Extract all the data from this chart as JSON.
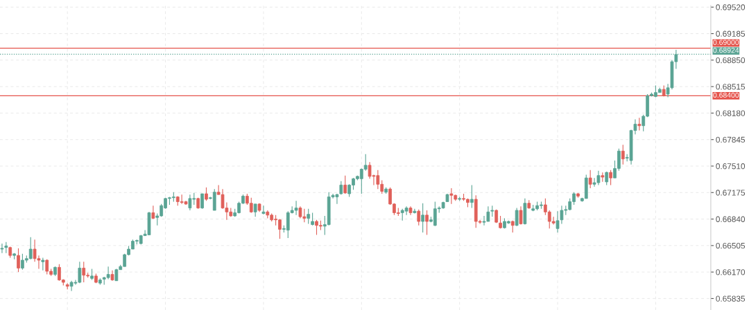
{
  "chart_data": {
    "type": "candlestick",
    "categories": [
      null,
      null,
      null,
      null,
      null,
      null,
      null,
      null,
      null,
      null,
      null,
      null,
      null,
      null,
      null,
      null,
      null,
      null,
      null,
      null,
      null,
      null,
      null,
      null,
      null,
      null,
      null,
      null,
      null,
      null,
      null,
      null,
      null,
      null,
      null,
      null,
      null,
      null,
      null,
      null,
      null,
      null,
      null,
      null,
      null,
      null,
      null,
      null,
      null,
      null,
      null,
      null,
      null,
      null,
      null,
      null,
      null,
      null,
      null,
      null,
      null,
      null,
      null,
      null,
      null,
      null,
      null,
      null,
      null,
      null,
      null,
      null,
      null,
      null,
      null,
      null,
      null,
      null,
      null,
      null,
      null,
      null,
      null,
      null,
      null,
      null,
      null,
      null,
      null,
      null,
      null,
      null,
      null,
      null,
      null,
      null,
      null,
      null,
      null,
      null,
      null,
      null,
      null,
      null,
      null,
      null,
      null,
      null,
      null,
      null,
      null,
      null,
      null,
      null,
      null,
      null,
      null,
      null,
      null,
      null,
      null,
      null,
      null,
      null,
      null,
      null,
      null,
      null,
      null,
      null,
      null,
      null,
      null,
      null,
      null,
      null,
      null,
      null,
      null,
      null,
      null,
      null,
      null,
      null,
      null,
      null,
      null,
      null,
      null,
      null,
      null,
      null,
      null,
      null,
      null,
      null,
      null,
      null,
      null,
      null,
      null,
      null,
      null,
      null,
      null,
      null
    ],
    "ohlc": [
      [
        0.6646,
        0.6653,
        0.6641,
        0.6647
      ],
      [
        0.6648,
        0.6655,
        0.6641,
        0.665
      ],
      [
        0.6648,
        0.6649,
        0.6635,
        0.6638
      ],
      [
        0.6638,
        0.6641,
        0.6633,
        0.664
      ],
      [
        0.6638,
        0.6647,
        0.6617,
        0.6622
      ],
      [
        0.6622,
        0.664,
        0.662,
        0.6632
      ],
      [
        0.6632,
        0.6638,
        0.6629,
        0.6634
      ],
      [
        0.6634,
        0.6661,
        0.6633,
        0.6646
      ],
      [
        0.6646,
        0.6658,
        0.663,
        0.6634
      ],
      [
        0.6634,
        0.6638,
        0.6621,
        0.6632
      ],
      [
        0.663,
        0.6635,
        0.6619,
        0.6632
      ],
      [
        0.6632,
        0.6633,
        0.6614,
        0.6618
      ],
      [
        0.6618,
        0.6621,
        0.6612,
        0.6614
      ],
      [
        0.6614,
        0.6624,
        0.6612,
        0.6623
      ],
      [
        0.6623,
        0.6627,
        0.6606,
        0.6607
      ],
      [
        0.6607,
        0.6608,
        0.66,
        0.6604
      ],
      [
        0.6601,
        0.6603,
        0.6595,
        0.6599
      ],
      [
        0.6599,
        0.6606,
        0.6593,
        0.6604
      ],
      [
        0.6603,
        0.6607,
        0.6601,
        0.6604
      ],
      [
        0.6604,
        0.663,
        0.6603,
        0.6622
      ],
      [
        0.6622,
        0.663,
        0.6604,
        0.6613
      ],
      [
        0.6613,
        0.6616,
        0.661,
        0.6612
      ],
      [
        0.6609,
        0.6621,
        0.6607,
        0.6612
      ],
      [
        0.6612,
        0.6615,
        0.6603,
        0.6604
      ],
      [
        0.6603,
        0.6609,
        0.6601,
        0.6607
      ],
      [
        0.6608,
        0.6611,
        0.6601,
        0.661
      ],
      [
        0.661,
        0.6624,
        0.6608,
        0.6614
      ],
      [
        0.6614,
        0.6619,
        0.6606,
        0.6607
      ],
      [
        0.6606,
        0.6621,
        0.6606,
        0.662
      ],
      [
        0.662,
        0.6626,
        0.662,
        0.6624
      ],
      [
        0.6624,
        0.664,
        0.6624,
        0.6639
      ],
      [
        0.6639,
        0.665,
        0.6638,
        0.6646
      ],
      [
        0.6646,
        0.6658,
        0.6646,
        0.6656
      ],
      [
        0.6656,
        0.6658,
        0.6652,
        0.6657
      ],
      [
        0.6653,
        0.6664,
        0.6652,
        0.6663
      ],
      [
        0.6663,
        0.667,
        0.6663,
        0.6665
      ],
      [
        0.6664,
        0.6693,
        0.6664,
        0.6692
      ],
      [
        0.6692,
        0.6701,
        0.6684,
        0.6685
      ],
      [
        0.6686,
        0.6691,
        0.6676,
        0.6688
      ],
      [
        0.6688,
        0.6703,
        0.6687,
        0.6701
      ],
      [
        0.6698,
        0.6711,
        0.6697,
        0.671
      ],
      [
        0.671,
        0.6712,
        0.6702,
        0.6711
      ],
      [
        0.6711,
        0.6718,
        0.6706,
        0.6712
      ],
      [
        0.6712,
        0.6713,
        0.6701,
        0.6706
      ],
      [
        0.6706,
        0.6715,
        0.6703,
        0.6705
      ],
      [
        0.6706,
        0.6707,
        0.6702,
        0.6703
      ],
      [
        0.6698,
        0.6715,
        0.6695,
        0.671
      ],
      [
        0.6709,
        0.6717,
        0.6702,
        0.671
      ],
      [
        0.671,
        0.6711,
        0.6697,
        0.6698
      ],
      [
        0.6698,
        0.6716,
        0.6697,
        0.6716
      ],
      [
        0.6716,
        0.6724,
        0.6707,
        0.6709
      ],
      [
        0.671,
        0.6712,
        0.6709,
        0.6711
      ],
      [
        0.6695,
        0.6722,
        0.6695,
        0.6718
      ],
      [
        0.6718,
        0.6727,
        0.6715,
        0.6715
      ],
      [
        0.6715,
        0.6722,
        0.6697,
        0.6698
      ],
      [
        0.6698,
        0.6705,
        0.6683,
        0.6693
      ],
      [
        0.6693,
        0.6698,
        0.6687,
        0.6688
      ],
      [
        0.6688,
        0.6697,
        0.6687,
        0.6692
      ],
      [
        0.6692,
        0.6706,
        0.6691,
        0.6704
      ],
      [
        0.6704,
        0.6715,
        0.6703,
        0.6713
      ],
      [
        0.6713,
        0.6716,
        0.6702,
        0.6704
      ],
      [
        0.6704,
        0.6711,
        0.6692,
        0.6693
      ],
      [
        0.6693,
        0.6703,
        0.6687,
        0.6703
      ],
      [
        0.6703,
        0.6704,
        0.6693,
        0.6695
      ],
      [
        0.6691,
        0.6701,
        0.669,
        0.6693
      ],
      [
        0.6693,
        0.6695,
        0.6685,
        0.6689
      ],
      [
        0.6689,
        0.6691,
        0.6681,
        0.6683
      ],
      [
        0.6684,
        0.6689,
        0.6676,
        0.6683
      ],
      [
        0.6683,
        0.6684,
        0.6659,
        0.6671
      ],
      [
        0.6671,
        0.6676,
        0.6667,
        0.6672
      ],
      [
        0.667,
        0.6694,
        0.666,
        0.6692
      ],
      [
        0.6692,
        0.67,
        0.6691,
        0.6695
      ],
      [
        0.6695,
        0.6707,
        0.6689,
        0.6698
      ],
      [
        0.6698,
        0.67,
        0.6685,
        0.6687
      ],
      [
        0.6687,
        0.6697,
        0.668,
        0.6685
      ],
      [
        0.6685,
        0.6697,
        0.6678,
        0.669
      ],
      [
        0.6677,
        0.6692,
        0.6676,
        0.6681
      ],
      [
        0.6681,
        0.6683,
        0.6664,
        0.6676
      ],
      [
        0.6676,
        0.6682,
        0.667,
        0.6675
      ],
      [
        0.6675,
        0.6688,
        0.6664,
        0.6677
      ],
      [
        0.6677,
        0.6718,
        0.6676,
        0.6712
      ],
      [
        0.6712,
        0.6716,
        0.671,
        0.6714
      ],
      [
        0.6712,
        0.6716,
        0.6703,
        0.6715
      ],
      [
        0.6716,
        0.6732,
        0.6715,
        0.6727
      ],
      [
        0.6727,
        0.6739,
        0.6716,
        0.6717
      ],
      [
        0.6716,
        0.6728,
        0.6712,
        0.6727
      ],
      [
        0.6727,
        0.6736,
        0.6721,
        0.6735
      ],
      [
        0.6735,
        0.6739,
        0.6733,
        0.6738
      ],
      [
        0.6735,
        0.6748,
        0.6716,
        0.6747
      ],
      [
        0.6747,
        0.6766,
        0.6745,
        0.6752
      ],
      [
        0.6752,
        0.6756,
        0.6735,
        0.6738
      ],
      [
        0.6739,
        0.674,
        0.6727,
        0.6738
      ],
      [
        0.6739,
        0.6746,
        0.6722,
        0.6728
      ],
      [
        0.6728,
        0.6733,
        0.6716,
        0.6719
      ],
      [
        0.6718,
        0.6724,
        0.6716,
        0.6722
      ],
      [
        0.6722,
        0.6724,
        0.6702,
        0.6703
      ],
      [
        0.6703,
        0.6704,
        0.6689,
        0.6692
      ],
      [
        0.6692,
        0.6698,
        0.6688,
        0.6691
      ],
      [
        0.6692,
        0.6697,
        0.6682,
        0.6695
      ],
      [
        0.6694,
        0.67,
        0.6689,
        0.6698
      ],
      [
        0.6698,
        0.67,
        0.6689,
        0.6692
      ],
      [
        0.6692,
        0.6697,
        0.6691,
        0.6694
      ],
      [
        0.6694,
        0.6696,
        0.6676,
        0.6681
      ],
      [
        0.6681,
        0.6704,
        0.6667,
        0.6689
      ],
      [
        0.6689,
        0.6695,
        0.6664,
        0.6681
      ],
      [
        0.6681,
        0.6687,
        0.668,
        0.6683
      ],
      [
        0.6676,
        0.6706,
        0.6675,
        0.6697
      ],
      [
        0.6697,
        0.67,
        0.6692,
        0.6698
      ],
      [
        0.6698,
        0.6706,
        0.6697,
        0.6705
      ],
      [
        0.6706,
        0.6716,
        0.6706,
        0.6715
      ],
      [
        0.6716,
        0.6723,
        0.6703,
        0.6714
      ],
      [
        0.6714,
        0.6715,
        0.6707,
        0.6709
      ],
      [
        0.6709,
        0.6712,
        0.6707,
        0.671
      ],
      [
        0.671,
        0.6716,
        0.6707,
        0.6709
      ],
      [
        0.6709,
        0.671,
        0.6699,
        0.6705
      ],
      [
        0.6705,
        0.6727,
        0.6698,
        0.6709
      ],
      [
        0.6709,
        0.6714,
        0.6673,
        0.6681
      ],
      [
        0.6681,
        0.6683,
        0.6678,
        0.668
      ],
      [
        0.668,
        0.6688,
        0.6676,
        0.6681
      ],
      [
        0.6681,
        0.67,
        0.6681,
        0.6693
      ],
      [
        0.6694,
        0.6701,
        0.6687,
        0.6695
      ],
      [
        0.6695,
        0.6696,
        0.6679,
        0.668
      ],
      [
        0.6679,
        0.6688,
        0.6672,
        0.6673
      ],
      [
        0.6673,
        0.6685,
        0.6672,
        0.6681
      ],
      [
        0.6679,
        0.6682,
        0.6678,
        0.6681
      ],
      [
        0.6681,
        0.6682,
        0.6667,
        0.6676
      ],
      [
        0.6676,
        0.6698,
        0.6675,
        0.6695
      ],
      [
        0.6695,
        0.67,
        0.6677,
        0.6678
      ],
      [
        0.6678,
        0.671,
        0.6677,
        0.6704
      ],
      [
        0.6704,
        0.6708,
        0.6697,
        0.6698
      ],
      [
        0.6695,
        0.6702,
        0.6694,
        0.6697
      ],
      [
        0.6697,
        0.6706,
        0.6695,
        0.6701
      ],
      [
        0.6701,
        0.6706,
        0.6697,
        0.6702
      ],
      [
        0.6702,
        0.671,
        0.6689,
        0.6693
      ],
      [
        0.6693,
        0.6695,
        0.6672,
        0.6681
      ],
      [
        0.6681,
        0.6687,
        0.6677,
        0.6679
      ],
      [
        0.6672,
        0.6694,
        0.6667,
        0.6682
      ],
      [
        0.6683,
        0.6701,
        0.6678,
        0.6695
      ],
      [
        0.6695,
        0.6701,
        0.6689,
        0.6696
      ],
      [
        0.6696,
        0.671,
        0.6695,
        0.6706
      ],
      [
        0.6706,
        0.6718,
        0.6702,
        0.6716
      ],
      [
        0.6716,
        0.6717,
        0.6711,
        0.6713
      ],
      [
        0.6707,
        0.6711,
        0.6706,
        0.671
      ],
      [
        0.671,
        0.674,
        0.671,
        0.6736
      ],
      [
        0.6736,
        0.6746,
        0.6723,
        0.6728
      ],
      [
        0.6728,
        0.6736,
        0.6725,
        0.673
      ],
      [
        0.673,
        0.6745,
        0.6727,
        0.6739
      ],
      [
        0.6739,
        0.6743,
        0.6731,
        0.6737
      ],
      [
        0.6731,
        0.6744,
        0.6727,
        0.6743
      ],
      [
        0.6743,
        0.6746,
        0.6727,
        0.6736
      ],
      [
        0.6736,
        0.6758,
        0.6736,
        0.6748
      ],
      [
        0.6748,
        0.6773,
        0.6745,
        0.677
      ],
      [
        0.677,
        0.6778,
        0.6753,
        0.676
      ],
      [
        0.6761,
        0.6766,
        0.6757,
        0.6762
      ],
      [
        0.6758,
        0.6797,
        0.6753,
        0.6796
      ],
      [
        0.6796,
        0.681,
        0.6791,
        0.6804
      ],
      [
        0.6804,
        0.6812,
        0.6796,
        0.6802
      ],
      [
        0.6802,
        0.6816,
        0.6795,
        0.6814
      ],
      [
        0.6814,
        0.6842,
        0.6813,
        0.684
      ],
      [
        0.684,
        0.6844,
        0.6839,
        0.6842
      ],
      [
        0.6839,
        0.6853,
        0.6838,
        0.6844
      ],
      [
        0.6844,
        0.685,
        0.6844,
        0.6848
      ],
      [
        0.6848,
        0.6853,
        0.6839,
        0.684
      ],
      [
        0.6842,
        0.6855,
        0.6838,
        0.685
      ],
      [
        0.685,
        0.6885,
        0.6848,
        0.6883
      ],
      [
        0.6883,
        0.6898,
        0.6874,
        0.6892
      ]
    ],
    "colors": [
      "#5aa494",
      "#5aa494",
      "#e0605a",
      "#5aa494",
      "#e0605a",
      "#5aa494",
      "#5aa494",
      "#5aa494",
      "#e0605a",
      "#e0605a",
      "#5aa494",
      "#e0605a",
      "#e0605a",
      "#5aa494",
      "#e0605a",
      "#e0605a",
      "#e0605a",
      "#5aa494",
      "#5aa494",
      "#5aa494",
      "#e0605a",
      "#e0605a",
      "#5aa494",
      "#e0605a",
      "#5aa494",
      "#5aa494",
      "#5aa494",
      "#e0605a",
      "#5aa494",
      "#5aa494",
      "#5aa494",
      "#5aa494",
      "#5aa494",
      "#5aa494",
      "#5aa494",
      "#5aa494",
      "#5aa494",
      "#e0605a",
      "#5aa494",
      "#5aa494",
      "#5aa494",
      "#5aa494",
      "#5aa494",
      "#e0605a",
      "#e0605a",
      "#e0605a",
      "#5aa494",
      "#5aa494",
      "#e0605a",
      "#5aa494",
      "#e0605a",
      "#5aa494",
      "#5aa494",
      "#e0605a",
      "#e0605a",
      "#e0605a",
      "#e0605a",
      "#5aa494",
      "#5aa494",
      "#5aa494",
      "#e0605a",
      "#e0605a",
      "#5aa494",
      "#e0605a",
      "#5aa494",
      "#e0605a",
      "#e0605a",
      "#e0605a",
      "#e0605a",
      "#5aa494",
      "#5aa494",
      "#5aa494",
      "#5aa494",
      "#e0605a",
      "#e0605a",
      "#5aa494",
      "#5aa494",
      "#e0605a",
      "#e0605a",
      "#5aa494",
      "#5aa494",
      "#5aa494",
      "#5aa494",
      "#5aa494",
      "#e0605a",
      "#5aa494",
      "#5aa494",
      "#5aa494",
      "#5aa494",
      "#5aa494",
      "#e0605a",
      "#e0605a",
      "#e0605a",
      "#e0605a",
      "#5aa494",
      "#e0605a",
      "#e0605a",
      "#e0605a",
      "#5aa494",
      "#5aa494",
      "#e0605a",
      "#5aa494",
      "#e0605a",
      "#5aa494",
      "#e0605a",
      "#5aa494",
      "#5aa494",
      "#5aa494",
      "#5aa494",
      "#5aa494",
      "#e0605a",
      "#e0605a",
      "#5aa494",
      "#e0605a",
      "#e0605a",
      "#5aa494",
      "#e0605a",
      "#e0605a",
      "#5aa494",
      "#5aa494",
      "#5aa494",
      "#e0605a",
      "#e0605a",
      "#5aa494",
      "#5aa494",
      "#e0605a",
      "#5aa494",
      "#e0605a",
      "#5aa494",
      "#e0605a",
      "#5aa494",
      "#5aa494",
      "#5aa494",
      "#e0605a",
      "#e0605a",
      "#e0605a",
      "#5aa494",
      "#5aa494",
      "#5aa494",
      "#5aa494",
      "#5aa494",
      "#e0605a",
      "#5aa494",
      "#5aa494",
      "#e0605a",
      "#5aa494",
      "#5aa494",
      "#e0605a",
      "#5aa494",
      "#e0605a",
      "#5aa494",
      "#5aa494",
      "#e0605a",
      "#5aa494",
      "#5aa494",
      "#5aa494",
      "#e0605a",
      "#5aa494",
      "#5aa494",
      "#5aa494",
      "#5aa494",
      "#5aa494",
      "#e0605a",
      "#5aa494",
      "#5aa494",
      "#5aa494"
    ],
    "ylim": [
      0.6569,
      0.6954
    ],
    "yticks": [
      {
        "value": 0.65835,
        "label": "0.65835"
      },
      {
        "value": 0.6617,
        "label": "0.66170"
      },
      {
        "value": 0.66505,
        "label": "0.66505"
      },
      {
        "value": 0.6684,
        "label": "0.66840"
      },
      {
        "value": 0.67175,
        "label": "0.67175"
      },
      {
        "value": 0.6751,
        "label": "0.67510"
      },
      {
        "value": 0.67845,
        "label": "0.67845"
      },
      {
        "value": 0.6818,
        "label": "0.68180"
      },
      {
        "value": 0.68515,
        "label": "0.68515"
      },
      {
        "value": 0.6885,
        "label": "0.68850"
      },
      {
        "value": 0.69185,
        "label": "0.69185"
      },
      {
        "value": 0.6952,
        "label": "0.69520"
      }
    ],
    "ref_lines": [
      {
        "axis": "y",
        "value": 0.69,
        "label": "0.69000",
        "color": "#e5534b",
        "line_style": "solid"
      },
      {
        "axis": "y",
        "value": 0.684,
        "label": "0.68400",
        "color": "#e5534b",
        "line_style": "solid"
      },
      {
        "axis": "y",
        "value": 0.68924,
        "label": "0.68924",
        "color": "#5aa494",
        "line_style": "dotted"
      }
    ],
    "grid": true,
    "tick_labels": "y"
  }
}
